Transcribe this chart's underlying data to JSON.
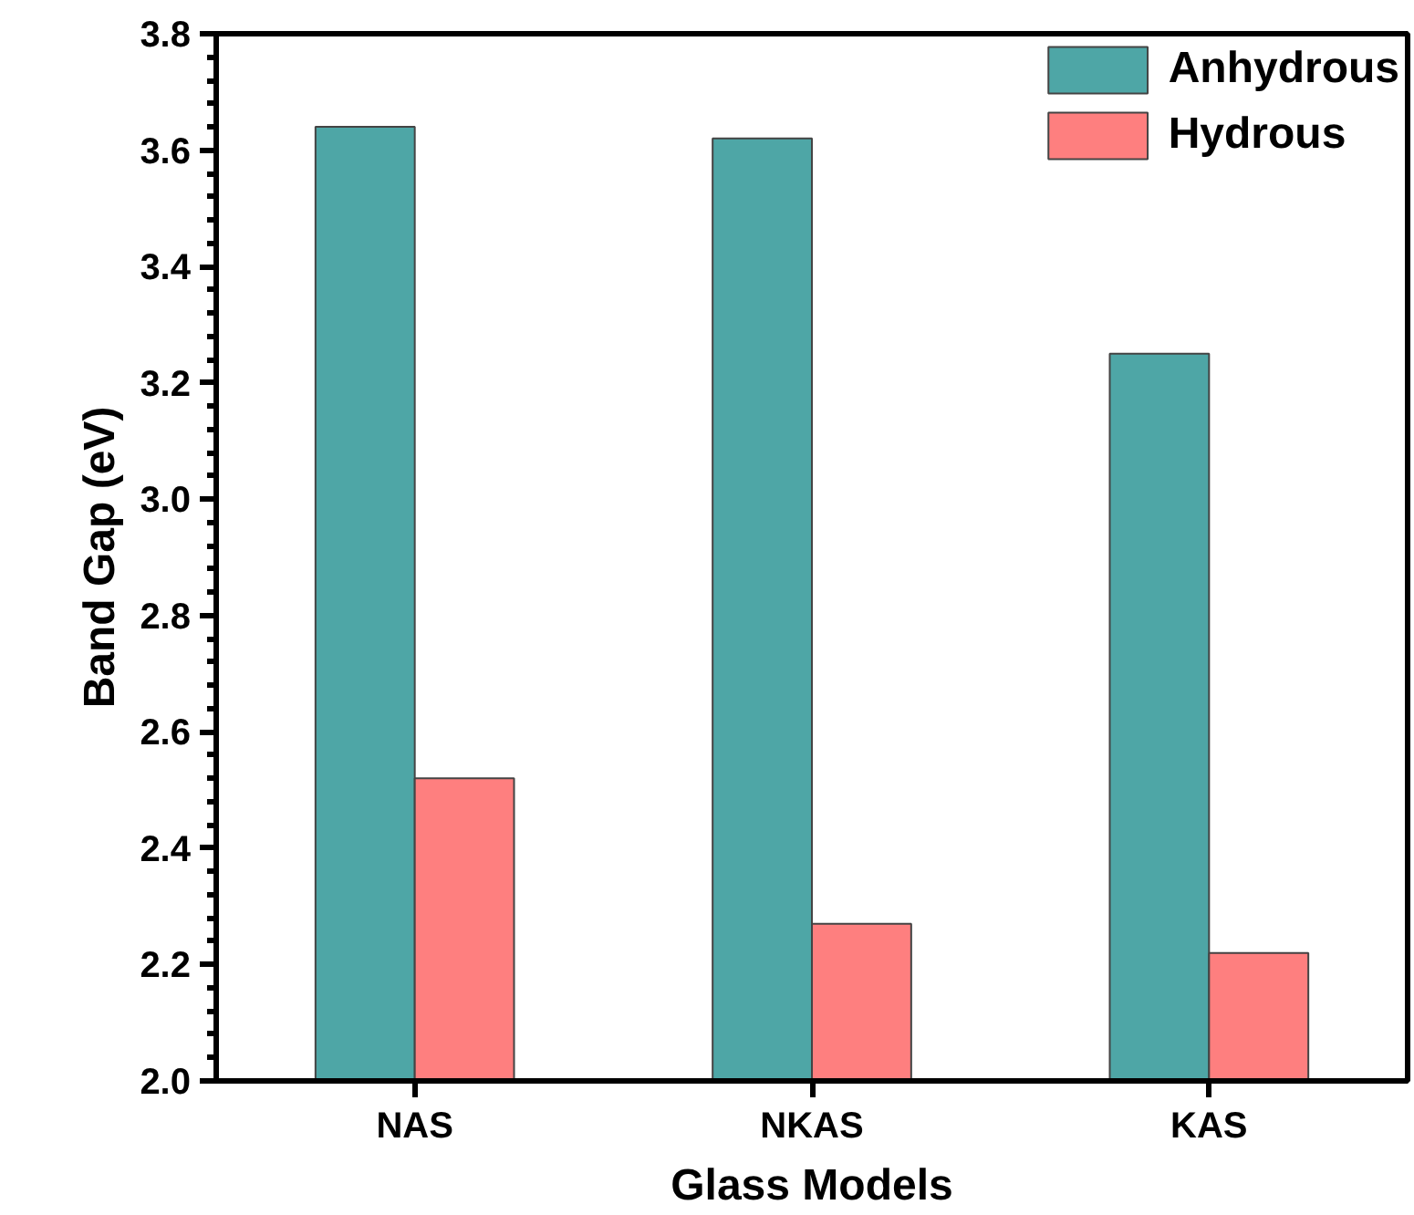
{
  "chart_data": {
    "type": "bar",
    "xlabel": "Glass Models",
    "ylabel": "Band Gap (eV)",
    "categories": [
      "NAS",
      "NKAS",
      "KAS"
    ],
    "series": [
      {
        "name": "Anhydrous",
        "color": "#4ea6a6",
        "values": [
          3.64,
          3.62,
          3.25
        ]
      },
      {
        "name": "Hydrous",
        "color": "#fe7f7f",
        "values": [
          2.52,
          2.27,
          2.22
        ]
      }
    ],
    "ylim": [
      2.0,
      3.8
    ],
    "yticks": [
      {
        "value": 2.0,
        "label": "2.0"
      },
      {
        "value": 2.2,
        "label": "2.2"
      },
      {
        "value": 2.4,
        "label": "2.4"
      },
      {
        "value": 2.6,
        "label": "2.6"
      },
      {
        "value": 2.8,
        "label": "2.8"
      },
      {
        "value": 3.0,
        "label": "3.0"
      },
      {
        "value": 3.2,
        "label": "3.2"
      },
      {
        "value": 3.4,
        "label": "3.4"
      },
      {
        "value": 3.6,
        "label": "3.6"
      },
      {
        "value": 3.8,
        "label": "3.8"
      }
    ],
    "grid": false,
    "legend": "top right"
  }
}
